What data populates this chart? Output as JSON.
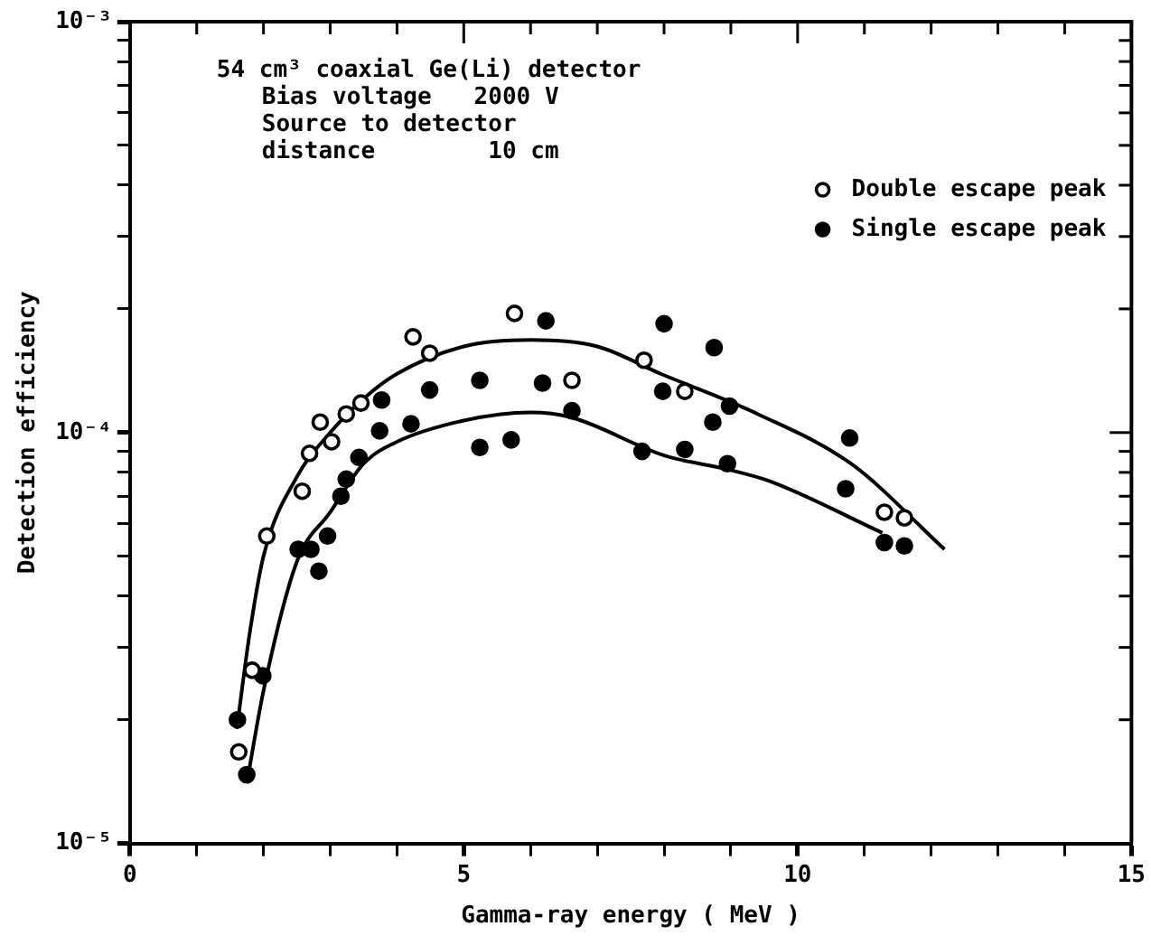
{
  "chart_data": {
    "type": "scatter",
    "xlabel": "Gamma-ray energy ( MeV )",
    "ylabel": "Detection efficiency",
    "log": "y",
    "grid": false,
    "legend": "top right",
    "marker": "circle",
    "xlim": [
      0,
      15
    ],
    "xticks": [
      0,
      {
        "value": 1,
        "label": null
      },
      {
        "value": 2,
        "label": null
      },
      {
        "value": 3,
        "label": null
      },
      {
        "value": 4,
        "label": null
      },
      5,
      {
        "value": 6,
        "label": null
      },
      {
        "value": 7,
        "label": null
      },
      {
        "value": 8,
        "label": null
      },
      {
        "value": 9,
        "label": null
      },
      10,
      {
        "value": 11,
        "label": null
      },
      {
        "value": 12,
        "label": null
      },
      {
        "value": 13,
        "label": null
      },
      {
        "value": 14,
        "label": null
      },
      15
    ],
    "ylim": [
      1e-05,
      0.001
    ],
    "yticks": [
      {
        "value": 1e-05,
        "label": "10⁻⁵"
      },
      {
        "value": 2e-05,
        "label": null
      },
      {
        "value": 3e-05,
        "label": null
      },
      {
        "value": 4e-05,
        "label": null
      },
      {
        "value": 5e-05,
        "label": null
      },
      {
        "value": 6e-05,
        "label": null
      },
      {
        "value": 7e-05,
        "label": null
      },
      {
        "value": 8e-05,
        "label": null
      },
      {
        "value": 9e-05,
        "label": null
      },
      {
        "value": 0.0001,
        "label": "10⁻⁴"
      },
      {
        "value": 0.0002,
        "label": null
      },
      {
        "value": 0.0003,
        "label": null
      },
      {
        "value": 0.0004,
        "label": null
      },
      {
        "value": 0.0005,
        "label": null
      },
      {
        "value": 0.0006,
        "label": null
      },
      {
        "value": 0.0007,
        "label": null
      },
      {
        "value": 0.0008,
        "label": null
      },
      {
        "value": 0.0009,
        "label": null
      },
      {
        "value": 0.001,
        "label": "10⁻³"
      }
    ],
    "annotations": [
      "54 cm³ coaxial Ge(Li) detector",
      "Bias voltage   2000 V",
      "Source to detector",
      "distance        10 cm"
    ],
    "series": [
      {
        "name": "Double escape peak",
        "color": "#ffffff",
        "x": [
          1.63,
          1.83,
          2.05,
          2.58,
          2.69,
          2.85,
          3.02,
          3.24,
          3.46,
          4.24,
          4.49,
          5.76,
          6.62,
          7.7,
          8.31,
          11.3,
          11.6
        ],
        "values": [
          1.67e-05,
          2.64e-05,
          5.6e-05,
          7.2e-05,
          8.9e-05,
          0.000106,
          9.5e-05,
          0.000111,
          0.000118,
          0.000171,
          0.000156,
          0.000195,
          0.000134,
          0.00015,
          0.000126,
          6.4e-05,
          6.2e-05
        ]
      },
      {
        "name": "Single escape peak",
        "color": "#000000",
        "x": [
          1.61,
          1.75,
          1.99,
          2.52,
          2.71,
          2.83,
          2.96,
          3.16,
          3.24,
          3.43,
          3.74,
          3.77,
          4.21,
          4.49,
          5.24,
          5.24,
          5.71,
          6.18,
          6.23,
          6.62,
          7.67,
          7.98,
          8.0,
          8.31,
          8.73,
          8.75,
          8.95,
          8.98,
          10.72,
          10.78,
          11.3,
          11.6
        ],
        "values": [
          2e-05,
          1.47e-05,
          2.56e-05,
          5.2e-05,
          5.2e-05,
          4.6e-05,
          5.6e-05,
          7e-05,
          7.7e-05,
          8.7e-05,
          0.000101,
          0.00012,
          0.000105,
          0.000127,
          0.000134,
          9.2e-05,
          9.6e-05,
          0.000132,
          0.000187,
          0.000113,
          9e-05,
          0.000126,
          0.000184,
          9.1e-05,
          0.000106,
          0.000161,
          8.4e-05,
          0.000116,
          7.3e-05,
          9.7e-05,
          5.4e-05,
          5.3e-05
        ]
      },
      {
        "type": "line",
        "marker": "none",
        "color": "#000000",
        "x": [
          1.6,
          1.8,
          2.0,
          2.5,
          3.0,
          3.5,
          4.0,
          5.0,
          6.0,
          7.0,
          7.95,
          9.4,
          10.8,
          12.2
        ],
        "values": [
          1.9e-05,
          3.3e-05,
          5e-05,
          7.8e-05,
          0.0001,
          0.000121,
          0.000139,
          0.000162,
          0.000168,
          0.000162,
          0.000139,
          0.000111,
          8.4e-05,
          5.2e-05
        ]
      },
      {
        "type": "line",
        "marker": "none",
        "color": "#000000",
        "x": [
          1.75,
          2.0,
          2.5,
          3.0,
          3.5,
          4.0,
          5.0,
          6.0,
          6.6,
          8.0,
          9.0,
          9.6,
          11.27
        ],
        "values": [
          1.4e-05,
          2.35e-05,
          4.85e-05,
          6.4e-05,
          8.4e-05,
          9.5e-05,
          0.000107,
          0.000112,
          0.000109,
          8.8e-05,
          8.1e-05,
          7.6e-05,
          5.7e-05
        ]
      }
    ]
  }
}
